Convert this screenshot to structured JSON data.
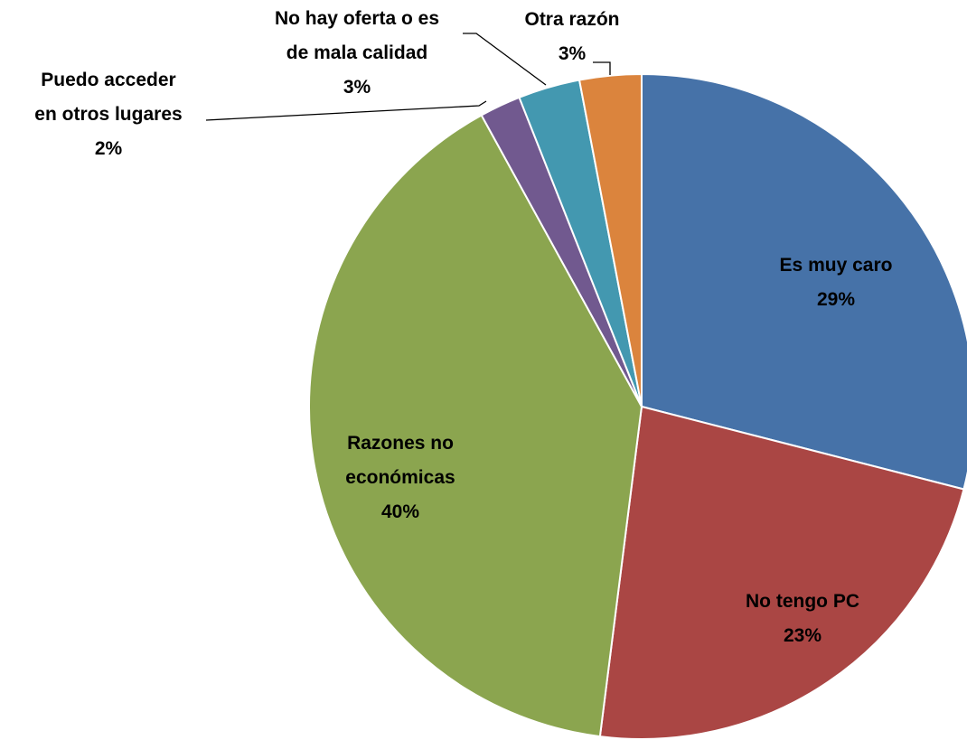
{
  "chart_data": {
    "type": "pie",
    "categories": [
      "Es muy caro",
      "No tengo PC",
      "Razones no económicas",
      "Puedo acceder en otros lugares",
      "No hay oferta o es de mala calidad",
      "Otra razón"
    ],
    "values": [
      29,
      23,
      40,
      2,
      3,
      3
    ],
    "value_labels": [
      "29%",
      "23%",
      "40%",
      "2%",
      "3%",
      "3%"
    ],
    "colors": [
      "#4672a8",
      "#aa4644",
      "#8ba54f",
      "#71598f",
      "#4398b0",
      "#db843d"
    ]
  }
}
